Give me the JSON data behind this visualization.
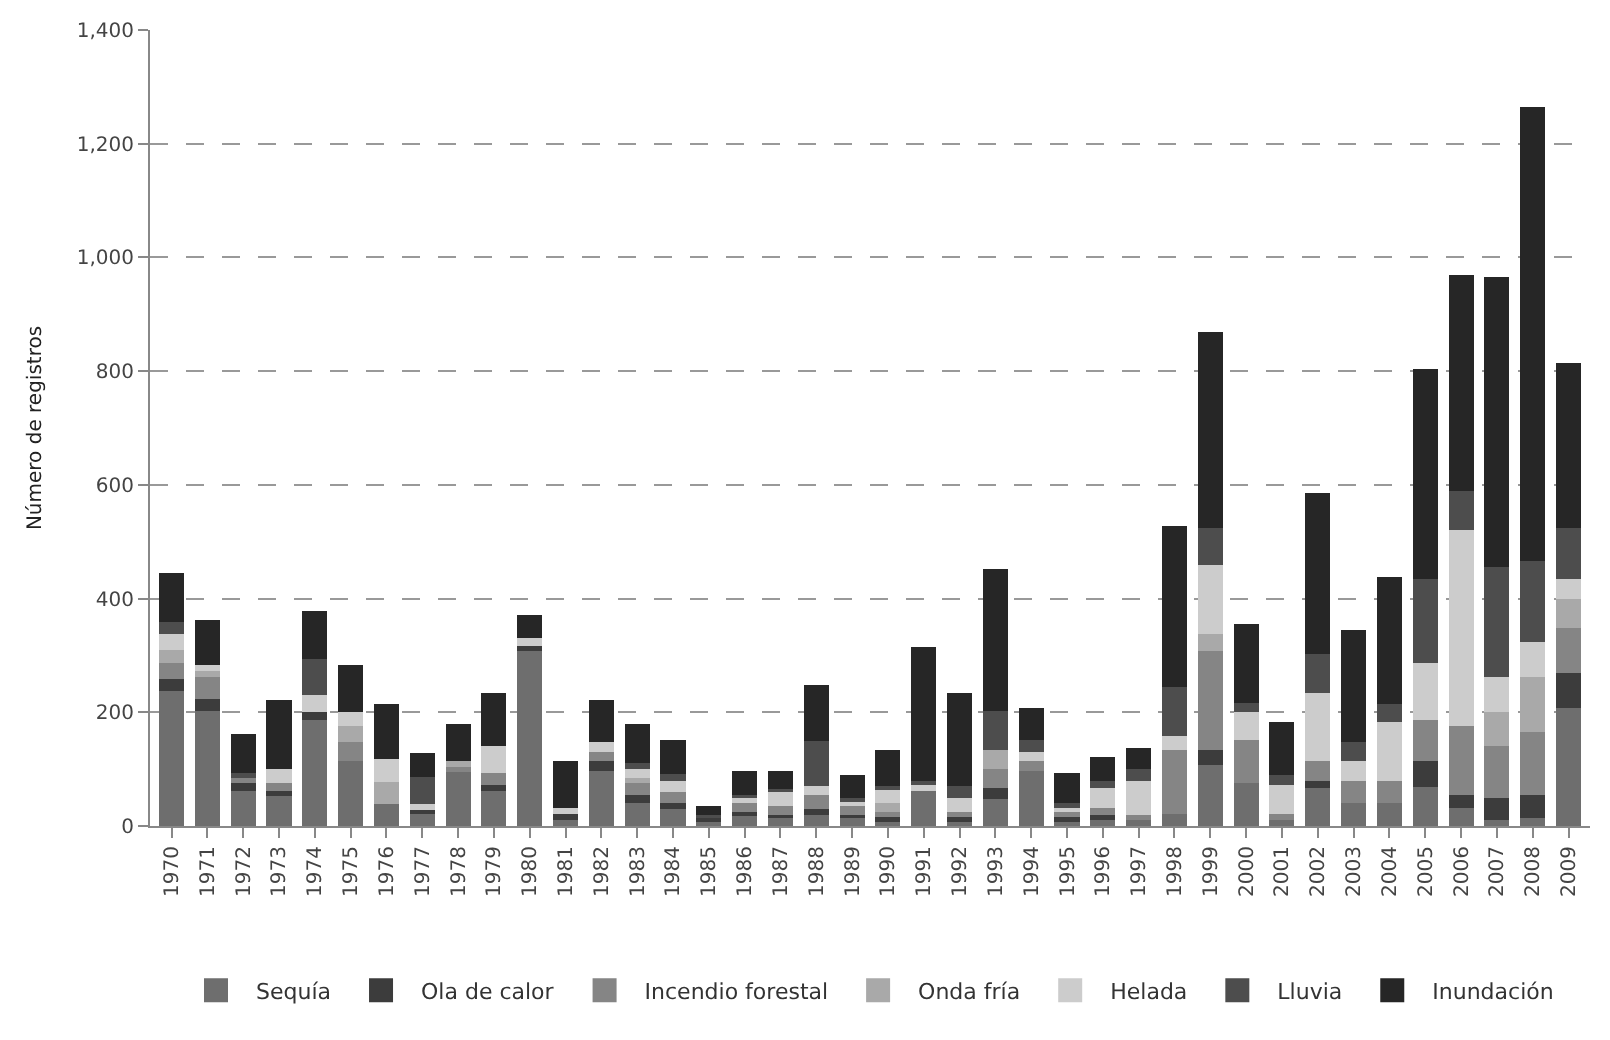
{
  "chart_data": {
    "type": "bar",
    "stacked": true,
    "ylabel": "Número de registros",
    "categories": [
      "1970",
      "1971",
      "1972",
      "1973",
      "1974",
      "1975",
      "1976",
      "1977",
      "1978",
      "1979",
      "1980",
      "1981",
      "1982",
      "1983",
      "1984",
      "1985",
      "1986",
      "1987",
      "1988",
      "1989",
      "1990",
      "1991",
      "1992",
      "1993",
      "1994",
      "1995",
      "1996",
      "1997",
      "1998",
      "1999",
      "2000",
      "2001",
      "2002",
      "2003",
      "2004",
      "2005",
      "2006",
      "2007",
      "2008",
      "2009"
    ],
    "series": [
      {
        "name": "Sequía",
        "color": "#6e6e6e",
        "values": [
          238,
          203,
          62,
          52,
          186,
          114,
          38,
          24,
          97,
          62,
          307,
          14,
          97,
          40,
          30,
          10,
          20,
          15,
          20,
          15,
          10,
          62,
          10,
          48,
          97,
          10,
          10,
          10,
          21,
          107,
          76,
          10,
          66,
          40,
          40,
          69,
          31,
          10,
          14,
          207
        ]
      },
      {
        "name": "Ola de calor",
        "color": "#3c3c3c",
        "values": [
          21,
          21,
          14,
          10,
          14,
          0,
          0,
          7,
          0,
          10,
          10,
          7,
          17,
          15,
          10,
          5,
          5,
          5,
          10,
          5,
          5,
          0,
          5,
          18,
          0,
          5,
          10,
          0,
          0,
          27,
          0,
          0,
          13,
          0,
          0,
          45,
          24,
          40,
          41,
          62
        ]
      },
      {
        "name": "Incendio forestal",
        "color": "#858585",
        "values": [
          27,
          38,
          10,
          14,
          0,
          34,
          0,
          0,
          6,
          21,
          0,
          0,
          17,
          20,
          20,
          null,
          15,
          15,
          25,
          15,
          10,
          0,
          10,
          34,
          17,
          10,
          11,
          10,
          113,
          173,
          76,
          11,
          35,
          39,
          39,
          72,
          121,
          91,
          111,
          79
        ]
      },
      {
        "name": "Onda fría",
        "color": "#a9a9a9",
        "values": [
          24,
          10,
          0,
          0,
          0,
          28,
          40,
          0,
          11,
          0,
          0,
          0,
          0,
          10,
          0,
          0,
          0,
          0,
          0,
          0,
          15,
          0,
          0,
          34,
          0,
          0,
          0,
          0,
          0,
          31,
          0,
          0,
          0,
          0,
          0,
          0,
          0,
          60,
          96,
          52
        ]
      },
      {
        "name": "Helada",
        "color": "#cccccc",
        "values": [
          28,
          11,
          0,
          24,
          31,
          24,
          39,
          7,
          0,
          48,
          14,
          10,
          17,
          15,
          20,
          0,
          10,
          25,
          15,
          10,
          25,
          10,
          25,
          0,
          17,
          10,
          35,
          59,
          25,
          121,
          48,
          51,
          120,
          35,
          104,
          100,
          345,
          61,
          62,
          34
        ]
      },
      {
        "name": "Lluvia",
        "color": "#4d4d4d",
        "values": [
          21,
          0,
          7,
          0,
          62,
          0,
          0,
          48,
          0,
          0,
          0,
          0,
          0,
          10,
          12,
          5,
          5,
          5,
          80,
          5,
          5,
          8,
          20,
          69,
          20,
          5,
          13,
          21,
          86,
          65,
          17,
          18,
          69,
          34,
          31,
          148,
          69,
          193,
          142,
          90
        ]
      },
      {
        "name": "Inundación",
        "color": "#262626",
        "values": [
          86,
          79,
          69,
          121,
          86,
          83,
          97,
          42,
          65,
          93,
          41,
          83,
          73,
          69,
          60,
          16,
          42,
          32,
          98,
          40,
          64,
          234,
          164,
          249,
          56,
          53,
          42,
          38,
          283,
          345,
          138,
          93,
          283,
          197,
          224,
          369,
          379,
          511,
          799,
          290
        ]
      }
    ],
    "ylim": [
      0,
      1400
    ],
    "yticks": [
      0,
      200,
      400,
      600,
      800,
      {
        "value": 1000,
        "label": "1,000"
      },
      {
        "value": 1200,
        "label": "1,200"
      },
      {
        "value": 1400,
        "label": "1,400"
      }
    ],
    "grid": "y",
    "legend": "bottom"
  }
}
